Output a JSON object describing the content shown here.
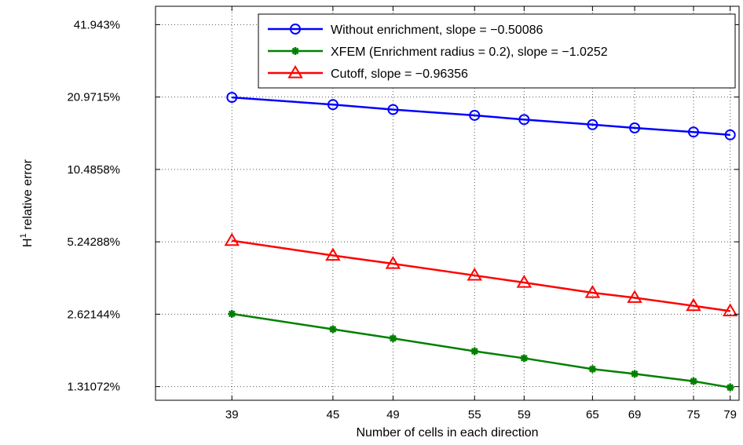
{
  "chart_data": {
    "type": "line",
    "xlabel": "Number of cells in each direction",
    "ylabel_main": "H",
    "ylabel_sup": "1",
    "ylabel_rest": " relative error",
    "x_scale": "log",
    "y_scale": "log",
    "grid": true,
    "legend_position": "top-right",
    "xlim": [
      35,
      80
    ],
    "ylim": [
      1.15,
      50
    ],
    "x_ticks": [
      39,
      45,
      49,
      55,
      59,
      65,
      69,
      75,
      79
    ],
    "x_tick_labels": [
      "39",
      "45",
      "49",
      "55",
      "59",
      "65",
      "69",
      "75",
      "79"
    ],
    "y_ticks": [
      1.31072,
      2.62144,
      5.24288,
      10.4858,
      20.9715,
      41.943
    ],
    "y_tick_labels": [
      "1.31072%",
      "2.62144%",
      "5.24288%",
      "10.4858%",
      "20.9715%",
      "41.943%"
    ],
    "x": [
      39,
      45,
      49,
      55,
      59,
      65,
      69,
      75,
      79
    ],
    "series": [
      {
        "name": "Without enrichment, slope = −0.50086",
        "color": "#0000ff",
        "marker": "circle",
        "values": [
          20.9,
          19.5,
          18.6,
          17.6,
          16.9,
          16.1,
          15.6,
          15.0,
          14.6
        ]
      },
      {
        "name": "XFEM (Enrichment radius = 0.2), slope = −1.0252",
        "color": "#008000",
        "marker": "asterisk",
        "values": [
          2.63,
          2.27,
          2.08,
          1.84,
          1.72,
          1.55,
          1.48,
          1.38,
          1.3
        ]
      },
      {
        "name": "Cutoff, slope = −0.96356",
        "color": "#ff0000",
        "marker": "triangle",
        "values": [
          5.3,
          4.6,
          4.25,
          3.8,
          3.55,
          3.22,
          3.07,
          2.84,
          2.7
        ]
      }
    ]
  }
}
